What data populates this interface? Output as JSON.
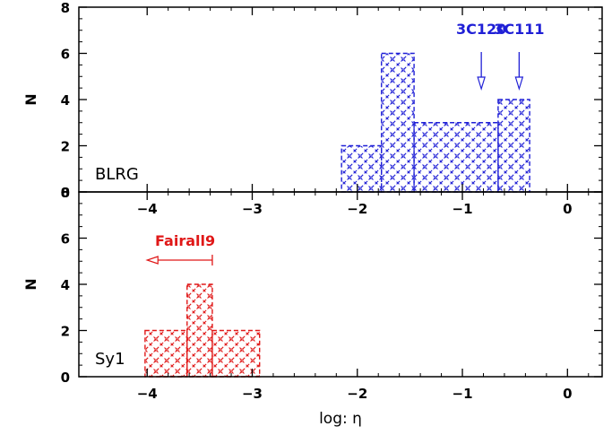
{
  "chart_data": [
    {
      "type": "histogram",
      "panel": "top",
      "label": "BLRG",
      "ylabel": "N",
      "xlim": [
        -4.65,
        0.33
      ],
      "ylim": [
        0,
        8
      ],
      "x_ticks": [
        -4,
        -3,
        -2,
        -1,
        0
      ],
      "y_ticks": [
        0,
        2,
        4,
        6,
        8
      ],
      "color": "#1f1fd6",
      "bins": [
        {
          "x0": -2.15,
          "x1": -1.77,
          "count": 2
        },
        {
          "x0": -1.77,
          "x1": -1.46,
          "count": 6
        },
        {
          "x0": -1.46,
          "x1": -0.66,
          "count": 3
        },
        {
          "x0": -0.66,
          "x1": -0.36,
          "count": 4
        }
      ],
      "annotations": [
        {
          "text": "3C120",
          "x": -0.82,
          "arrow": "down"
        },
        {
          "text": "3C111",
          "x": -0.46,
          "arrow": "down"
        }
      ]
    },
    {
      "type": "histogram",
      "panel": "bottom",
      "label": "Sy1",
      "ylabel": "N",
      "xlabel": "log: η",
      "xlim": [
        -4.65,
        0.33
      ],
      "ylim": [
        0,
        8
      ],
      "x_ticks": [
        -4,
        -3,
        -2,
        -1,
        0
      ],
      "y_ticks": [
        0,
        2,
        4,
        6,
        8
      ],
      "color": "#e01818",
      "bins": [
        {
          "x0": -4.02,
          "x1": -3.62,
          "count": 2
        },
        {
          "x0": -3.62,
          "x1": -3.38,
          "count": 4
        },
        {
          "x0": -3.38,
          "x1": -2.93,
          "count": 2
        }
      ],
      "annotations": [
        {
          "text": "Fairall9",
          "x": -3.38,
          "arrow": "left",
          "arrow_to": -4.0
        }
      ]
    }
  ]
}
